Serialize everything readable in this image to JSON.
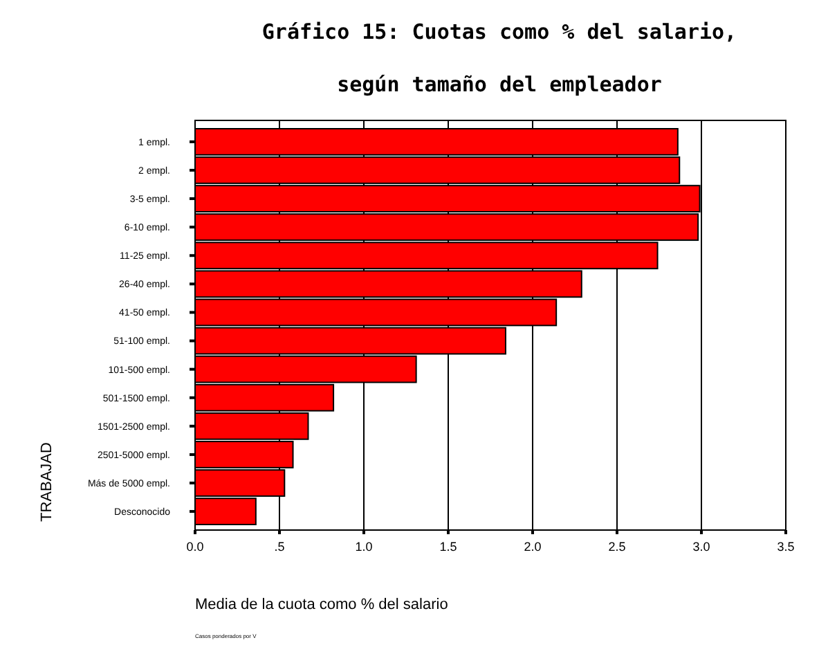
{
  "chart_data": {
    "type": "bar",
    "orientation": "horizontal",
    "title": "Gráfico 15: Cuotas como % del salario,",
    "subtitle": "según tamaño del empleador",
    "xlabel": "Media de la cuota como % del salario",
    "ylabel": "TRABAJAD",
    "categories": [
      "1 empl.",
      "2 empl.",
      "3-5 empl.",
      "6-10 empl.",
      "11-25 empl.",
      "26-40 empl.",
      "41-50 empl.",
      "51-100 empl.",
      "101-500 empl.",
      "501-1500 empl.",
      "1501-2500 empl.",
      "2501-5000 empl.",
      "Más de 5000 empl.",
      "Desconocido"
    ],
    "values": [
      2.86,
      2.87,
      2.99,
      2.98,
      2.74,
      2.29,
      2.14,
      1.84,
      1.31,
      0.82,
      0.67,
      0.58,
      0.53,
      0.36
    ],
    "color": "#ff0000",
    "xlim": [
      0,
      3.5
    ],
    "xticks": [
      {
        "value": 0,
        "label": "0.0"
      },
      {
        "value": 0.5,
        "label": ".5"
      },
      {
        "value": 1,
        "label": "1.0"
      },
      {
        "value": 1.5,
        "label": "1.5"
      },
      {
        "value": 2,
        "label": "2.0"
      },
      {
        "value": 2.5,
        "label": "2.5"
      },
      {
        "value": 3,
        "label": "3.0"
      },
      {
        "value": 3.5,
        "label": "3.5"
      }
    ],
    "grid": "x",
    "annotations": [
      "Casos ponderados por V"
    ]
  }
}
